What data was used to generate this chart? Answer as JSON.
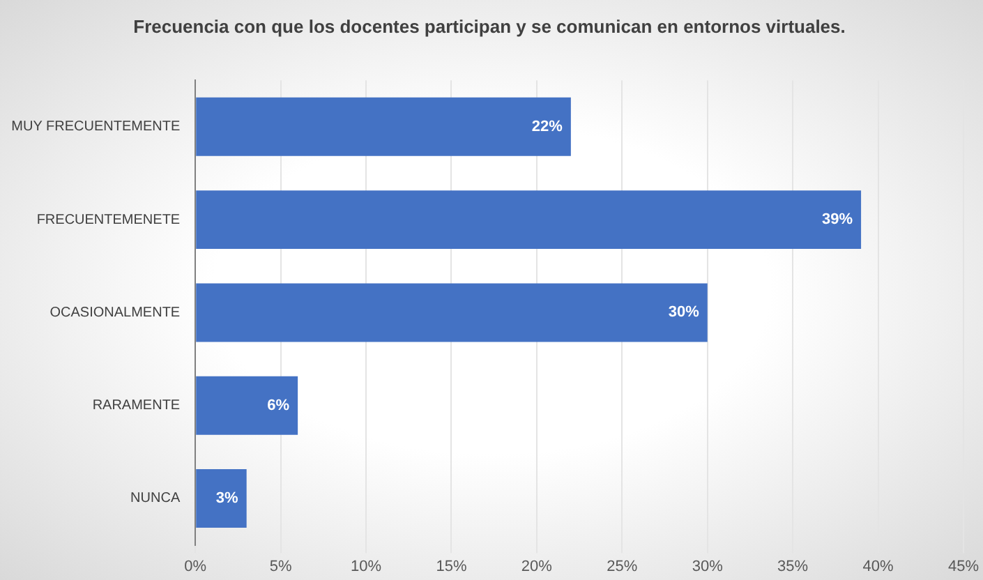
{
  "chart_data": {
    "type": "bar",
    "orientation": "horizontal",
    "title": "Frecuencia con que los docentes participan y se comunican en entornos virtuales.",
    "categories": [
      "MUY FRECUENTEMENTE",
      "FRECUENTEMENETE",
      "OCASIONALMENTE",
      "RARAMENTE",
      "NUNCA"
    ],
    "values": [
      22,
      39,
      30,
      6,
      3
    ],
    "value_labels": [
      "22%",
      "39%",
      "30%",
      "6%",
      "3%"
    ],
    "color": "#4472c4",
    "xlim": [
      0,
      45
    ],
    "xticks": [
      {
        "value": 0,
        "label": "0%"
      },
      {
        "value": 5,
        "label": "5%"
      },
      {
        "value": 10,
        "label": "10%"
      },
      {
        "value": 15,
        "label": "15%"
      },
      {
        "value": 20,
        "label": "20%"
      },
      {
        "value": 25,
        "label": "25%"
      },
      {
        "value": 30,
        "label": "30%"
      },
      {
        "value": 35,
        "label": "35%"
      },
      {
        "value": 40,
        "label": "40%"
      },
      {
        "value": 45,
        "label": "45%"
      }
    ],
    "grid": "x",
    "legend": false
  }
}
